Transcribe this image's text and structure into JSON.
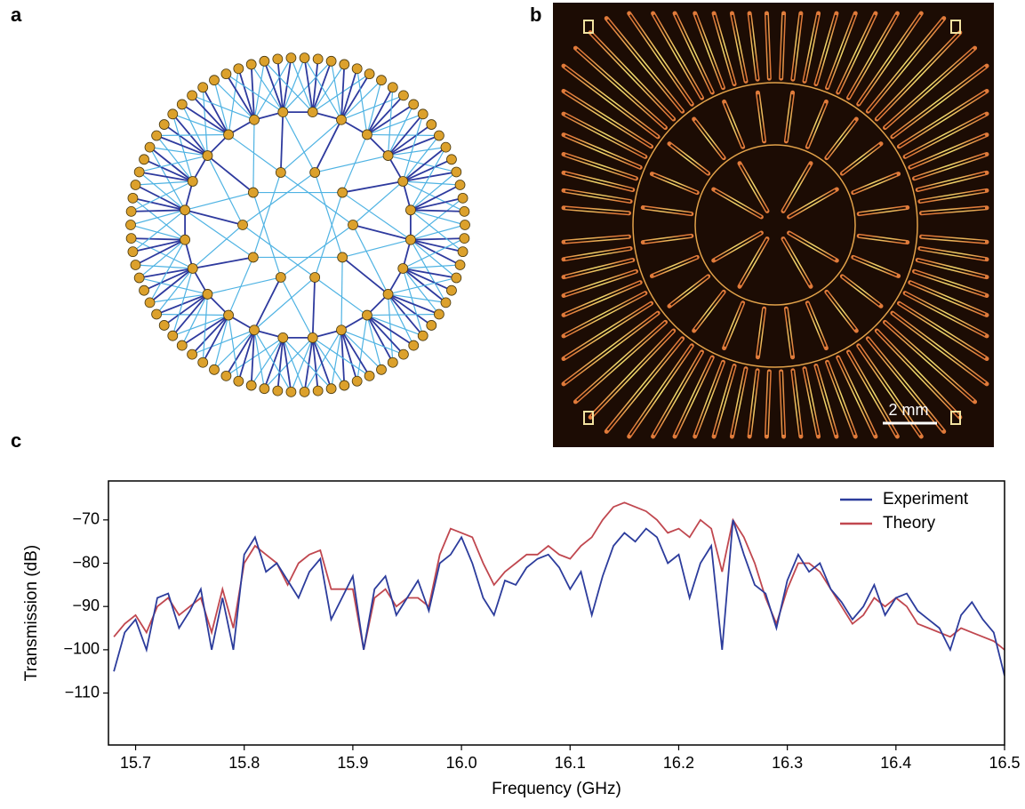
{
  "panel_labels": [
    "a",
    "b",
    "c"
  ],
  "scale_bar_label": "2 mm",
  "chart_data": {
    "type": "line",
    "xlabel": "Frequency (GHz)",
    "ylabel": "Transmission (dB)",
    "x": [
      15.68,
      15.69,
      15.7,
      15.71,
      15.72,
      15.73,
      15.74,
      15.75,
      15.76,
      15.77,
      15.78,
      15.79,
      15.8,
      15.81,
      15.82,
      15.83,
      15.84,
      15.85,
      15.86,
      15.87,
      15.88,
      15.89,
      15.9,
      15.91,
      15.92,
      15.93,
      15.94,
      15.95,
      15.96,
      15.97,
      15.98,
      15.99,
      16.0,
      16.01,
      16.02,
      16.03,
      16.04,
      16.05,
      16.06,
      16.07,
      16.08,
      16.09,
      16.1,
      16.11,
      16.12,
      16.13,
      16.14,
      16.15,
      16.16,
      16.17,
      16.18,
      16.19,
      16.2,
      16.21,
      16.22,
      16.23,
      16.24,
      16.25,
      16.26,
      16.27,
      16.28,
      16.29,
      16.3,
      16.31,
      16.32,
      16.33,
      16.34,
      16.35,
      16.36,
      16.37,
      16.38,
      16.39,
      16.4,
      16.41,
      16.42,
      16.43,
      16.44,
      16.45,
      16.46,
      16.47,
      16.48,
      16.49,
      16.5
    ],
    "series": [
      {
        "name": "Experiment",
        "color": "#2c3c9c",
        "values": [
          -105,
          -96,
          -93,
          -100,
          -88,
          -87,
          -95,
          -91,
          -86,
          -100,
          -88,
          -100,
          -78,
          -74,
          -82,
          -80,
          -84,
          -88,
          -82,
          -79,
          -93,
          -88,
          -83,
          -100,
          -86,
          -83,
          -92,
          -88,
          -84,
          -91,
          -80,
          -78,
          -74,
          -80,
          -88,
          -92,
          -84,
          -85,
          -81,
          -79,
          -78,
          -81,
          -86,
          -82,
          -92,
          -83,
          -76,
          -73,
          -75,
          -72,
          -74,
          -80,
          -78,
          -88,
          -80,
          -76,
          -100,
          -70,
          -78,
          -85,
          -87,
          -95,
          -84,
          -78,
          -82,
          -80,
          -86,
          -89,
          -93,
          -90,
          -85,
          -92,
          -88,
          -87,
          -91,
          -93,
          -95,
          -100,
          -92,
          -89,
          -93,
          -96,
          -106
        ]
      },
      {
        "name": "Theory",
        "color": "#c0474f",
        "values": [
          -97,
          -94,
          -92,
          -96,
          -90,
          -88,
          -92,
          -90,
          -88,
          -96,
          -86,
          -95,
          -80,
          -76,
          -78,
          -80,
          -85,
          -80,
          -78,
          -77,
          -86,
          -86,
          -86,
          -100,
          -88,
          -86,
          -90,
          -88,
          -88,
          -90,
          -78,
          -72,
          -73,
          -74,
          -80,
          -85,
          -82,
          -80,
          -78,
          -78,
          -76,
          -78,
          -79,
          -76,
          -74,
          -70,
          -67,
          -66,
          -67,
          -68,
          -70,
          -73,
          -72,
          -74,
          -70,
          -72,
          -82,
          -70,
          -74,
          -80,
          -88,
          -94,
          -86,
          -80,
          -80,
          -82,
          -86,
          -90,
          -94,
          -92,
          -88,
          -90,
          -88,
          -90,
          -94,
          -95,
          -96,
          -97,
          -95,
          -96,
          -97,
          -98,
          -100
        ]
      }
    ],
    "xlim": [
      15.675,
      16.5
    ],
    "ylim": [
      -122,
      -61
    ],
    "xticks": [
      15.7,
      15.8,
      15.9,
      {
        "value": 16,
        "label": "16.0"
      },
      16.1,
      16.2,
      16.3,
      16.4,
      16.5
    ],
    "yticks": [
      {
        "value": -110,
        "label": "−110"
      },
      {
        "value": -100,
        "label": "−100"
      },
      {
        "value": -90,
        "label": "−90"
      },
      {
        "value": -80,
        "label": "−80"
      },
      {
        "value": -70,
        "label": "−70"
      }
    ],
    "grid": false,
    "legend": "upper right"
  }
}
